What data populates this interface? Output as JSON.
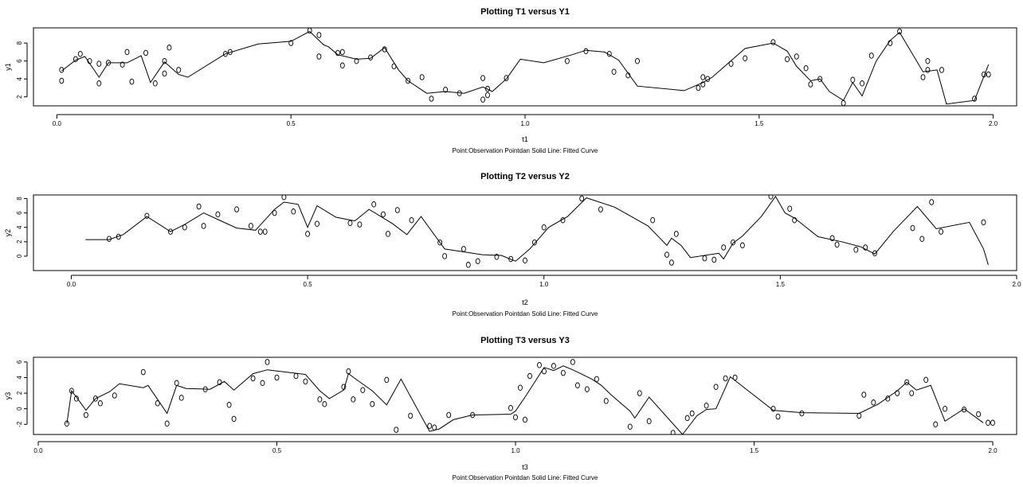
{
  "chart_data": [
    {
      "type": "scatter",
      "title": "Plotting T1 versus Y1",
      "xlabel": "t1",
      "ylabel": "y1",
      "subtitle": "Point:Observation Pointdan Solid Line: Fitted Curve",
      "xlim": [
        -0.05,
        2.05
      ],
      "ylim": [
        1,
        9.7
      ],
      "xticks": [
        0.0,
        0.5,
        1.0,
        1.5,
        2.0
      ],
      "yticks": [
        2,
        4,
        6,
        8
      ],
      "series": [
        {
          "kind": "points",
          "x": [
            0.01,
            0.01,
            0.04,
            0.05,
            0.07,
            0.09,
            0.09,
            0.11,
            0.14,
            0.15,
            0.16,
            0.19,
            0.21,
            0.23,
            0.23,
            0.24,
            0.26,
            0.36,
            0.37,
            0.5,
            0.54,
            0.56,
            0.56,
            0.6,
            0.61,
            0.61,
            0.64,
            0.67,
            0.7,
            0.72,
            0.75,
            0.78,
            0.8,
            0.83,
            0.86,
            0.91,
            0.91,
            0.92,
            0.92,
            0.96,
            1.09,
            1.13,
            1.18,
            1.19,
            1.22,
            1.24,
            1.37,
            1.38,
            1.38,
            1.39,
            1.44,
            1.47,
            1.53,
            1.56,
            1.58,
            1.6,
            1.61,
            1.63,
            1.68,
            1.7,
            1.72,
            1.74,
            1.78,
            1.8,
            1.85,
            1.86,
            1.86,
            1.89,
            1.96,
            1.98,
            1.99
          ],
          "y": [
            3.8,
            5.0,
            6.2,
            6.8,
            6.0,
            5.7,
            3.5,
            5.8,
            5.6,
            7.0,
            3.7,
            6.9,
            3.5,
            4.6,
            6.0,
            7.5,
            5.0,
            6.8,
            7.0,
            8.0,
            9.4,
            6.5,
            8.9,
            6.9,
            5.5,
            7.0,
            6.0,
            6.4,
            7.3,
            5.4,
            3.8,
            4.2,
            1.8,
            2.8,
            2.4,
            1.7,
            4.1,
            2.2,
            2.9,
            4.1,
            6.0,
            7.1,
            6.8,
            4.8,
            4.4,
            6.0,
            3.0,
            4.2,
            3.4,
            4.0,
            5.7,
            6.3,
            8.1,
            6.2,
            6.5,
            5.2,
            3.4,
            4.0,
            1.3,
            3.9,
            3.5,
            6.6,
            8.0,
            9.3,
            4.2,
            6.0,
            5.0,
            5.0,
            1.8,
            4.5,
            4.5
          ]
        },
        {
          "kind": "line",
          "x": [
            0.01,
            0.04,
            0.06,
            0.09,
            0.11,
            0.15,
            0.18,
            0.2,
            0.23,
            0.26,
            0.28,
            0.36,
            0.43,
            0.5,
            0.54,
            0.55,
            0.57,
            0.58,
            0.6,
            0.64,
            0.67,
            0.7,
            0.73,
            0.75,
            0.79,
            0.83,
            0.87,
            0.91,
            0.93,
            0.96,
            0.99,
            1.04,
            1.1,
            1.13,
            1.17,
            1.2,
            1.24,
            1.34,
            1.38,
            1.4,
            1.47,
            1.53,
            1.56,
            1.58,
            1.61,
            1.63,
            1.65,
            1.68,
            1.7,
            1.72,
            1.75,
            1.78,
            1.8,
            1.85,
            1.88,
            1.9,
            1.96,
            1.99
          ],
          "y": [
            4.9,
            6.1,
            6.5,
            4.2,
            5.8,
            5.8,
            6.6,
            3.6,
            5.9,
            4.5,
            4.2,
            6.8,
            7.9,
            8.2,
            9.3,
            8.8,
            7.8,
            7.6,
            6.7,
            6.2,
            6.3,
            7.5,
            5.0,
            3.8,
            2.4,
            2.6,
            2.4,
            3.1,
            2.6,
            4.0,
            6.2,
            5.8,
            6.7,
            7.2,
            7.0,
            6.1,
            3.2,
            2.7,
            3.6,
            4.2,
            7.4,
            8.0,
            7.1,
            5.4,
            3.8,
            4.0,
            2.6,
            1.6,
            3.6,
            2.1,
            6.0,
            8.3,
            9.2,
            4.8,
            5.0,
            1.2,
            1.6,
            5.6
          ]
        }
      ]
    },
    {
      "type": "scatter",
      "title": "Plotting T2 versus Y2",
      "xlabel": "t2",
      "ylabel": "y2",
      "subtitle": "Point:Observation Pointdan Solid Line: Fitted Curve",
      "xlim": [
        -0.08,
        2.0
      ],
      "ylim": [
        -2,
        8.5
      ],
      "xticks": [
        0.0,
        0.5,
        1.0,
        1.5,
        2.0
      ],
      "yticks": [
        0,
        2,
        4,
        6,
        8
      ],
      "series": [
        {
          "kind": "points",
          "x": [
            0.08,
            0.1,
            0.16,
            0.21,
            0.24,
            0.27,
            0.28,
            0.31,
            0.35,
            0.38,
            0.4,
            0.41,
            0.43,
            0.45,
            0.47,
            0.5,
            0.52,
            0.59,
            0.61,
            0.64,
            0.66,
            0.67,
            0.69,
            0.72,
            0.78,
            0.79,
            0.83,
            0.84,
            0.86,
            0.9,
            0.93,
            0.96,
            0.98,
            1.0,
            1.04,
            1.08,
            1.12,
            1.23,
            1.26,
            1.27,
            1.28,
            1.34,
            1.36,
            1.38,
            1.4,
            1.42,
            1.48,
            1.52,
            1.53,
            1.61,
            1.62,
            1.66,
            1.68,
            1.7,
            1.78,
            1.8,
            1.82,
            1.84,
            1.93
          ],
          "y": [
            2.4,
            2.7,
            5.6,
            3.4,
            4.0,
            6.9,
            4.2,
            5.8,
            6.5,
            4.2,
            3.4,
            3.4,
            6.0,
            8.2,
            6.2,
            3.1,
            4.5,
            4.6,
            4.4,
            7.2,
            5.8,
            3.1,
            6.4,
            5.0,
            1.9,
            0.0,
            1.0,
            -1.2,
            -0.7,
            -0.1,
            -0.4,
            -0.6,
            1.9,
            4.0,
            5.0,
            8.0,
            6.5,
            5.0,
            0.2,
            -0.9,
            3.1,
            -0.3,
            -0.5,
            1.2,
            1.9,
            1.5,
            8.3,
            6.6,
            5.0,
            2.5,
            1.6,
            0.9,
            1.2,
            0.4,
            3.9,
            2.4,
            7.5,
            3.4,
            4.7
          ]
        },
        {
          "kind": "line",
          "x": [
            0.03,
            0.08,
            0.11,
            0.16,
            0.21,
            0.24,
            0.28,
            0.32,
            0.35,
            0.39,
            0.43,
            0.45,
            0.48,
            0.5,
            0.52,
            0.56,
            0.6,
            0.63,
            0.68,
            0.71,
            0.74,
            0.79,
            0.83,
            0.87,
            0.91,
            0.94,
            0.97,
            1.01,
            1.05,
            1.09,
            1.15,
            1.22,
            1.26,
            1.27,
            1.29,
            1.31,
            1.37,
            1.38,
            1.4,
            1.42,
            1.46,
            1.49,
            1.51,
            1.53,
            1.58,
            1.63,
            1.67,
            1.7,
            1.74,
            1.79,
            1.83,
            1.9,
            1.93,
            1.94
          ],
          "y": [
            2.3,
            2.3,
            3.0,
            5.5,
            3.4,
            4.4,
            6.0,
            4.8,
            3.9,
            3.6,
            6.5,
            7.5,
            7.2,
            4.0,
            7.0,
            5.4,
            4.9,
            6.5,
            4.5,
            3.0,
            5.5,
            1.0,
            0.6,
            0.2,
            0.1,
            -0.7,
            1.0,
            4.0,
            5.5,
            8.1,
            6.8,
            4.2,
            1.5,
            2.5,
            1.5,
            -0.2,
            0.4,
            -0.4,
            1.8,
            2.8,
            5.5,
            8.3,
            6.0,
            5.3,
            2.7,
            2.0,
            1.3,
            0.3,
            3.5,
            6.9,
            3.8,
            4.7,
            1.0,
            -1.2
          ]
        }
      ]
    },
    {
      "type": "scatter",
      "title": "Plotting T3 versus Y3",
      "xlabel": "t3",
      "ylabel": "y3",
      "subtitle": "Point:Observation Pointdan Solid Line: Fitted Curve",
      "xlim": [
        -0.01,
        2.05
      ],
      "ylim": [
        -3.3,
        6.6
      ],
      "xticks": [
        0.0,
        0.5,
        1.0,
        1.5,
        2.0
      ],
      "yticks": [
        -2,
        0,
        2,
        4,
        6
      ],
      "series": [
        {
          "kind": "points",
          "x": [
            0.06,
            0.07,
            0.08,
            0.1,
            0.12,
            0.13,
            0.16,
            0.22,
            0.25,
            0.27,
            0.29,
            0.3,
            0.35,
            0.38,
            0.4,
            0.41,
            0.45,
            0.47,
            0.48,
            0.5,
            0.54,
            0.56,
            0.59,
            0.6,
            0.64,
            0.65,
            0.66,
            0.68,
            0.7,
            0.73,
            0.75,
            0.78,
            0.82,
            0.83,
            0.86,
            0.91,
            0.99,
            1.0,
            1.01,
            1.02,
            1.03,
            1.05,
            1.06,
            1.08,
            1.1,
            1.12,
            1.13,
            1.15,
            1.17,
            1.19,
            1.24,
            1.26,
            1.28,
            1.33,
            1.36,
            1.37,
            1.4,
            1.42,
            1.44,
            1.46,
            1.54,
            1.55,
            1.6,
            1.72,
            1.73,
            1.75,
            1.78,
            1.8,
            1.82,
            1.83,
            1.86,
            1.88,
            1.9,
            1.94,
            1.97,
            1.99,
            2.0
          ],
          "y": [
            -1.9,
            2.3,
            1.3,
            -0.8,
            1.3,
            0.7,
            1.7,
            4.7,
            0.7,
            -1.9,
            3.3,
            1.4,
            2.5,
            3.4,
            0.5,
            -1.3,
            3.9,
            3.3,
            6.0,
            4.0,
            4.2,
            3.5,
            1.2,
            0.6,
            2.8,
            4.8,
            1.2,
            2.4,
            0.6,
            3.7,
            -2.7,
            -0.9,
            -2.2,
            -2.4,
            -0.8,
            -0.8,
            0.1,
            -1.1,
            2.7,
            -1.4,
            4.2,
            5.6,
            4.8,
            5.5,
            4.6,
            6.0,
            3.0,
            2.5,
            3.8,
            1.0,
            -2.3,
            2.0,
            -1.6,
            -3.1,
            -1.2,
            -0.6,
            0.4,
            2.8,
            3.9,
            4.0,
            0.0,
            -1.0,
            -0.6,
            -0.9,
            1.8,
            0.8,
            1.3,
            2.0,
            3.4,
            2.0,
            3.7,
            -2.0,
            0.0,
            -0.1,
            -0.7,
            -1.8,
            -1.8
          ]
        },
        {
          "kind": "line",
          "x": [
            0.06,
            0.07,
            0.08,
            0.1,
            0.12,
            0.15,
            0.17,
            0.22,
            0.23,
            0.27,
            0.29,
            0.31,
            0.36,
            0.39,
            0.41,
            0.45,
            0.48,
            0.56,
            0.59,
            0.61,
            0.64,
            0.65,
            0.67,
            0.7,
            0.73,
            0.76,
            0.82,
            0.84,
            0.87,
            0.91,
            0.99,
            1.0,
            1.02,
            1.04,
            1.06,
            1.08,
            1.1,
            1.12,
            1.16,
            1.18,
            1.2,
            1.24,
            1.25,
            1.28,
            1.35,
            1.38,
            1.4,
            1.42,
            1.45,
            1.54,
            1.6,
            1.72,
            1.76,
            1.8,
            1.82,
            1.84,
            1.87,
            1.9,
            1.94,
            1.98
          ],
          "y": [
            -1.9,
            2.3,
            1.5,
            -0.2,
            1.3,
            2.2,
            3.2,
            2.7,
            3.0,
            -0.6,
            3.0,
            2.6,
            2.5,
            3.5,
            2.4,
            4.5,
            5.0,
            4.4,
            2.3,
            1.3,
            2.4,
            4.5,
            3.6,
            2.3,
            0.5,
            3.8,
            -2.9,
            -2.6,
            -1.4,
            -0.8,
            -0.7,
            -0.3,
            1.5,
            3.4,
            5.3,
            4.9,
            5.5,
            5.0,
            3.8,
            3.0,
            1.8,
            -0.3,
            -1.2,
            1.5,
            -3.3,
            -0.9,
            -0.1,
            0.0,
            4.1,
            -0.2,
            -0.5,
            -0.6,
            0.6,
            2.3,
            3.4,
            2.4,
            3.0,
            -1.6,
            0.0,
            -1.8
          ]
        }
      ]
    }
  ]
}
